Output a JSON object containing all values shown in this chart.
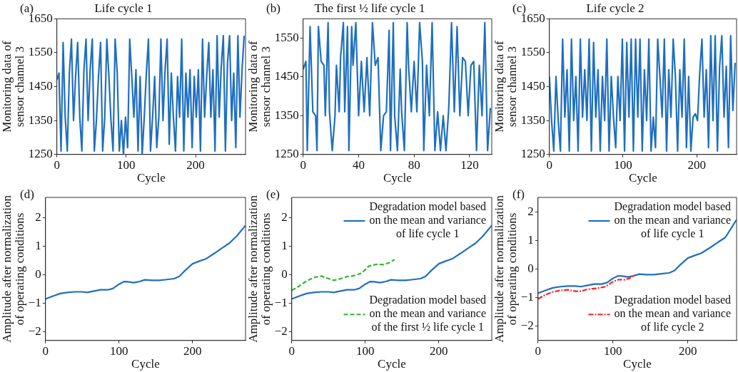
{
  "chart_data": [
    {
      "type": "line",
      "title": "Life cycle 1",
      "xlabel": "Cycle",
      "ylabel": "Monitoring data of sensor channel 3",
      "annotations": [
        "(a)"
      ],
      "series": [
        {
          "color": "#1f6fc0",
          "x": [
            0,
            3,
            6,
            9,
            12,
            15,
            18,
            21,
            24,
            27,
            30,
            33,
            36,
            39,
            42,
            45,
            48,
            51,
            54,
            57,
            60,
            63,
            66,
            69,
            72,
            75,
            78,
            81,
            84,
            87,
            90,
            93,
            96,
            99,
            102,
            105,
            108,
            111,
            114,
            117,
            120,
            123,
            126,
            129,
            132,
            135,
            138,
            141,
            144,
            147,
            150,
            153,
            156,
            159,
            162,
            165,
            168,
            171,
            174,
            177,
            180,
            183,
            186,
            189,
            192,
            195,
            198,
            201,
            204,
            207,
            210,
            213,
            216,
            219,
            222,
            225,
            228,
            231,
            234,
            237,
            240,
            243,
            246,
            249,
            252,
            255,
            258,
            261,
            264,
            267,
            270
          ],
          "values": [
            1470,
            1490,
            1260,
            1580,
            1360,
            1260,
            1490,
            1590,
            1350,
            1480,
            1580,
            1360,
            1260,
            1500,
            1590,
            1350,
            1500,
            1590,
            1260,
            1350,
            1480,
            1580,
            1260,
            1360,
            1590,
            1480,
            1350,
            1260,
            1590,
            1490,
            1260,
            1350,
            1250,
            1360,
            1270,
            1590,
            1480,
            1360,
            1500,
            1260,
            1480,
            1250,
            1360,
            1490,
            1590,
            1260,
            1360,
            1480,
            1270,
            1360,
            1590,
            1350,
            1500,
            1590,
            1280,
            1490,
            1360,
            1260,
            1480,
            1360,
            1590,
            1260,
            1490,
            1360,
            1500,
            1270,
            1480,
            1360,
            1500,
            1260,
            1590,
            1360,
            1480,
            1580,
            1360,
            1500,
            1260,
            1600,
            1360,
            1510,
            1600,
            1260,
            1520,
            1600,
            1350,
            1490,
            1270,
            1600,
            1360,
            1500,
            1600
          ]
        }
      ],
      "xlim": [
        0,
        272
      ],
      "xticks": [
        0,
        100,
        200
      ],
      "ylim": [
        1250,
        1650
      ],
      "yticks": [
        1250,
        1350,
        1450,
        1550,
        1650
      ],
      "line_style": "solid",
      "marker": "none"
    },
    {
      "type": "line",
      "title": "The first ½ life cycle 1",
      "xlabel": "Cycle",
      "ylabel": "Monitoring data of sensor channel 3",
      "annotations": [
        "(b)"
      ],
      "series": [
        {
          "color": "#1f6fc0",
          "x": [
            0,
            2,
            3,
            5,
            7,
            9,
            10,
            11,
            13,
            15,
            16,
            18,
            19,
            21,
            23,
            24,
            26,
            27,
            29,
            30,
            32,
            33,
            35,
            36,
            38,
            40,
            42,
            44,
            46,
            48,
            50,
            52,
            54,
            56,
            58,
            60,
            62,
            63,
            65,
            66,
            68,
            70,
            71,
            73,
            75,
            76,
            78,
            80,
            82,
            84,
            86,
            87,
            89,
            91,
            93,
            95,
            97,
            99,
            101,
            103,
            105,
            107,
            109,
            111,
            113,
            115,
            117,
            119,
            121,
            123,
            125,
            127,
            129,
            131,
            133,
            135
          ],
          "values": [
            1470,
            1490,
            1260,
            1580,
            1360,
            1350,
            1260,
            1580,
            1490,
            1480,
            1350,
            1590,
            1360,
            1260,
            1350,
            1480,
            1360,
            1500,
            1590,
            1360,
            1580,
            1260,
            1580,
            1480,
            1590,
            1350,
            1490,
            1360,
            1500,
            1350,
            1590,
            1480,
            1500,
            1260,
            1350,
            1360,
            1570,
            1260,
            1590,
            1350,
            1260,
            1470,
            1360,
            1260,
            1590,
            1480,
            1360,
            1490,
            1360,
            1590,
            1490,
            1260,
            1480,
            1350,
            1590,
            1260,
            1360,
            1260,
            1350,
            1260,
            1370,
            1590,
            1360,
            1580,
            1350,
            1500,
            1490,
            1350,
            1480,
            1490,
            1260,
            1480,
            1350,
            1590,
            1260,
            1370
          ]
        }
      ],
      "xlim": [
        0,
        136
      ],
      "xticks": [
        0,
        40,
        80,
        120
      ],
      "ylim": [
        1250,
        1600
      ],
      "yticks": [
        1250,
        1350,
        1450,
        1550
      ],
      "line_style": "solid",
      "marker": "none"
    },
    {
      "type": "line",
      "title": "Life cycle 2",
      "xlabel": "Cycle",
      "ylabel": "Monitoring data of sensor channel 3",
      "annotations": [
        "(c)"
      ],
      "series": [
        {
          "color": "#1f6fc0",
          "x": [
            0,
            3,
            6,
            9,
            12,
            15,
            18,
            21,
            24,
            27,
            30,
            33,
            36,
            39,
            42,
            45,
            48,
            51,
            54,
            57,
            60,
            63,
            66,
            69,
            72,
            75,
            78,
            81,
            84,
            87,
            90,
            93,
            96,
            99,
            102,
            105,
            108,
            111,
            114,
            117,
            120,
            123,
            126,
            129,
            132,
            135,
            138,
            141,
            144,
            147,
            150,
            153,
            156,
            159,
            162,
            165,
            168,
            171,
            174,
            177,
            180,
            183,
            186,
            189,
            192,
            195,
            198,
            201,
            204,
            207,
            210,
            213,
            216,
            219,
            222,
            225,
            228,
            231,
            234,
            237,
            240,
            243,
            246,
            249,
            252
          ],
          "values": [
            1480,
            1350,
            1260,
            1480,
            1350,
            1260,
            1590,
            1360,
            1500,
            1260,
            1590,
            1350,
            1480,
            1260,
            1590,
            1360,
            1500,
            1350,
            1590,
            1260,
            1580,
            1360,
            1500,
            1260,
            1480,
            1350,
            1590,
            1260,
            1480,
            1360,
            1270,
            1480,
            1350,
            1590,
            1260,
            1580,
            1360,
            1590,
            1260,
            1590,
            1360,
            1590,
            1260,
            1500,
            1350,
            1590,
            1260,
            1360,
            1270,
            1590,
            1480,
            1360,
            1590,
            1260,
            1500,
            1360,
            1590,
            1480,
            1260,
            1500,
            1360,
            1590,
            1270,
            1480,
            1260,
            1360,
            1370,
            1350,
            1490,
            1590,
            1360,
            1500,
            1270,
            1600,
            1350,
            1600,
            1260,
            1510,
            1600,
            1360,
            1510,
            1270,
            1600,
            1380,
            1520
          ]
        }
      ],
      "xlim": [
        0,
        254
      ],
      "xticks": [
        0,
        100,
        200
      ],
      "ylim": [
        1250,
        1650
      ],
      "yticks": [
        1250,
        1350,
        1450,
        1550,
        1650
      ],
      "line_style": "solid",
      "marker": "none"
    },
    {
      "type": "line",
      "xlabel": "Cycle",
      "ylabel": "Amplitude after normalization of operating conditions",
      "annotations": [
        "(d)"
      ],
      "series": [
        {
          "color": "#1f6fc0",
          "x": [
            0,
            10,
            20,
            30,
            40,
            50,
            57,
            65,
            75,
            85,
            92,
            100,
            107,
            112,
            120,
            128,
            135,
            145,
            155,
            165,
            175,
            182,
            190,
            200,
            210,
            218,
            230,
            240,
            250,
            260,
            272
          ],
          "values": [
            -0.85,
            -0.75,
            -0.66,
            -0.62,
            -0.6,
            -0.6,
            -0.62,
            -0.58,
            -0.53,
            -0.53,
            -0.48,
            -0.33,
            -0.24,
            -0.25,
            -0.28,
            -0.24,
            -0.18,
            -0.2,
            -0.2,
            -0.17,
            -0.14,
            -0.06,
            0.15,
            0.38,
            0.48,
            0.55,
            0.75,
            0.93,
            1.1,
            1.35,
            1.72
          ]
        }
      ],
      "xlim": [
        0,
        272
      ],
      "xticks": [
        0,
        100,
        200
      ],
      "ylim": [
        -2.3,
        2.7
      ],
      "yticks": [
        -2,
        -1,
        0,
        1,
        2
      ],
      "line_style": "solid",
      "marker": "none"
    },
    {
      "type": "line",
      "xlabel": "Cycle",
      "ylabel": "Amplitude after normalization of operating conditions",
      "annotations": [
        "(e)"
      ],
      "series": [
        {
          "name": "Degradation model based on the mean and variance of life cycle 1",
          "color": "#1f6fc0",
          "line_style": "solid",
          "x": [
            0,
            10,
            20,
            30,
            40,
            50,
            57,
            65,
            75,
            85,
            92,
            100,
            107,
            112,
            120,
            128,
            135,
            145,
            155,
            165,
            175,
            182,
            190,
            200,
            210,
            218,
            230,
            240,
            250,
            260,
            272
          ],
          "values": [
            -0.85,
            -0.75,
            -0.66,
            -0.62,
            -0.6,
            -0.6,
            -0.62,
            -0.58,
            -0.53,
            -0.53,
            -0.48,
            -0.33,
            -0.24,
            -0.25,
            -0.28,
            -0.24,
            -0.18,
            -0.2,
            -0.2,
            -0.17,
            -0.14,
            -0.06,
            0.15,
            0.38,
            0.48,
            0.55,
            0.75,
            0.93,
            1.1,
            1.35,
            1.72
          ]
        },
        {
          "name": "Degradation model based on the mean and variance of the first ½ life cycle 1",
          "color": "#2eb82e",
          "line_style": "dashed",
          "x": [
            0,
            10,
            20,
            30,
            40,
            48,
            57,
            65,
            75,
            85,
            95,
            105,
            115,
            125,
            133,
            140
          ],
          "values": [
            -0.55,
            -0.4,
            -0.22,
            -0.1,
            -0.05,
            -0.12,
            -0.2,
            -0.15,
            -0.07,
            -0.03,
            0.05,
            0.3,
            0.36,
            0.35,
            0.42,
            0.53
          ]
        }
      ],
      "xlim": [
        0,
        272
      ],
      "xticks": [
        0,
        100,
        200
      ],
      "ylim": [
        -2.3,
        2.7
      ],
      "yticks": [
        -2,
        -1,
        0,
        1,
        2
      ],
      "legend": "right",
      "marker": "none"
    },
    {
      "type": "line",
      "xlabel": "Cycle",
      "ylabel": "Amplitude after normalization of operating conditions",
      "annotations": [
        "(f)"
      ],
      "series": [
        {
          "name": "Degradation model based on the mean and variance of life cycle 1",
          "color": "#1f6fc0",
          "line_style": "solid",
          "x": [
            0,
            10,
            20,
            30,
            40,
            50,
            57,
            65,
            75,
            85,
            92,
            100,
            107,
            112,
            120,
            128,
            135,
            145,
            155,
            165,
            175,
            182,
            190,
            200,
            210,
            218,
            230,
            240,
            250,
            265
          ],
          "values": [
            -0.85,
            -0.75,
            -0.66,
            -0.62,
            -0.6,
            -0.6,
            -0.62,
            -0.58,
            -0.53,
            -0.53,
            -0.48,
            -0.33,
            -0.24,
            -0.25,
            -0.28,
            -0.24,
            -0.18,
            -0.2,
            -0.2,
            -0.17,
            -0.14,
            -0.06,
            0.15,
            0.38,
            0.48,
            0.55,
            0.75,
            0.93,
            1.1,
            1.72
          ]
        },
        {
          "name": "Degradation model based on the mean and variance of life cycle 2",
          "color": "#ff2020",
          "line_style": "dashdot",
          "x": [
            0,
            10,
            20,
            30,
            40,
            50,
            57,
            65,
            80,
            90,
            100,
            108,
            115,
            122,
            130
          ],
          "values": [
            -1.05,
            -0.9,
            -0.8,
            -0.75,
            -0.73,
            -0.78,
            -0.78,
            -0.72,
            -0.67,
            -0.62,
            -0.45,
            -0.37,
            -0.38,
            -0.33,
            -0.2
          ]
        }
      ],
      "xlim": [
        0,
        265
      ],
      "xticks": [
        0,
        100,
        200
      ],
      "ylim": [
        -2.5,
        2.5
      ],
      "yticks": [
        -2,
        -1,
        0,
        1,
        2
      ],
      "legend": "right",
      "marker": "none"
    }
  ]
}
